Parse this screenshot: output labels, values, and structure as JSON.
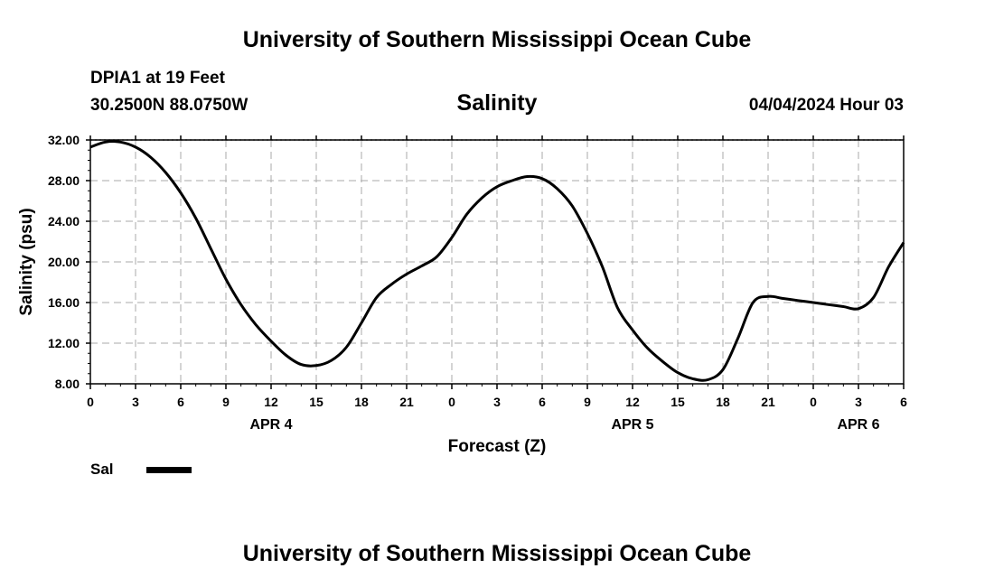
{
  "header": {
    "title": "University of Southern Mississippi Ocean Cube",
    "station": "DPIA1 at 19 Feet",
    "coords": "30.2500N  88.0750W",
    "variable": "Salinity",
    "datetime": "04/04/2024 Hour 03"
  },
  "footer": {
    "title": "University of Southern Mississippi Ocean Cube"
  },
  "legend": {
    "label": "Sal",
    "color": "#000000"
  },
  "chart_data": {
    "type": "line",
    "ylabel": "Salinity (psu)",
    "xlabel": "Forecast (Z)",
    "ylim": [
      8,
      32
    ],
    "xlim": [
      0,
      54
    ],
    "y_ticks": [
      "8.00",
      "12.00",
      "16.00",
      "20.00",
      "24.00",
      "28.00",
      "32.00"
    ],
    "x_ticks": [
      "0",
      "3",
      "6",
      "9",
      "12",
      "15",
      "18",
      "21",
      "0",
      "3",
      "6",
      "9",
      "12",
      "15",
      "18",
      "21",
      "0",
      "3",
      "6"
    ],
    "day_labels": [
      {
        "label": "APR 4",
        "hour": 12
      },
      {
        "label": "APR 5",
        "hour": 36
      },
      {
        "label": "APR 6",
        "hour": 51
      }
    ],
    "grid": true,
    "series": [
      {
        "name": "Sal",
        "color": "#000000",
        "x": [
          0,
          1,
          2,
          3,
          4,
          5,
          6,
          7,
          8,
          9,
          10,
          11,
          12,
          13,
          14,
          15,
          16,
          17,
          18,
          19,
          20,
          21,
          22,
          23,
          24,
          25,
          26,
          27,
          28,
          29,
          30,
          31,
          32,
          33,
          34,
          35,
          36,
          37,
          38,
          39,
          40,
          41,
          42,
          43,
          44,
          45,
          46,
          47,
          48,
          49,
          50,
          51,
          52,
          53,
          54
        ],
        "y": [
          31.3,
          31.8,
          31.8,
          31.3,
          30.3,
          28.8,
          26.8,
          24.3,
          21.3,
          18.3,
          15.8,
          13.8,
          12.2,
          10.8,
          9.9,
          9.8,
          10.3,
          11.6,
          14.0,
          16.5,
          17.8,
          18.8,
          19.6,
          20.5,
          22.4,
          24.7,
          26.3,
          27.4,
          28.0,
          28.4,
          28.2,
          27.2,
          25.5,
          22.8,
          19.5,
          15.5,
          13.3,
          11.5,
          10.2,
          9.1,
          8.5,
          8.4,
          9.4,
          12.5,
          16.0,
          16.6,
          16.4,
          16.2,
          16.0,
          15.8,
          15.6,
          15.4,
          16.5,
          19.5,
          21.9
        ]
      }
    ]
  }
}
